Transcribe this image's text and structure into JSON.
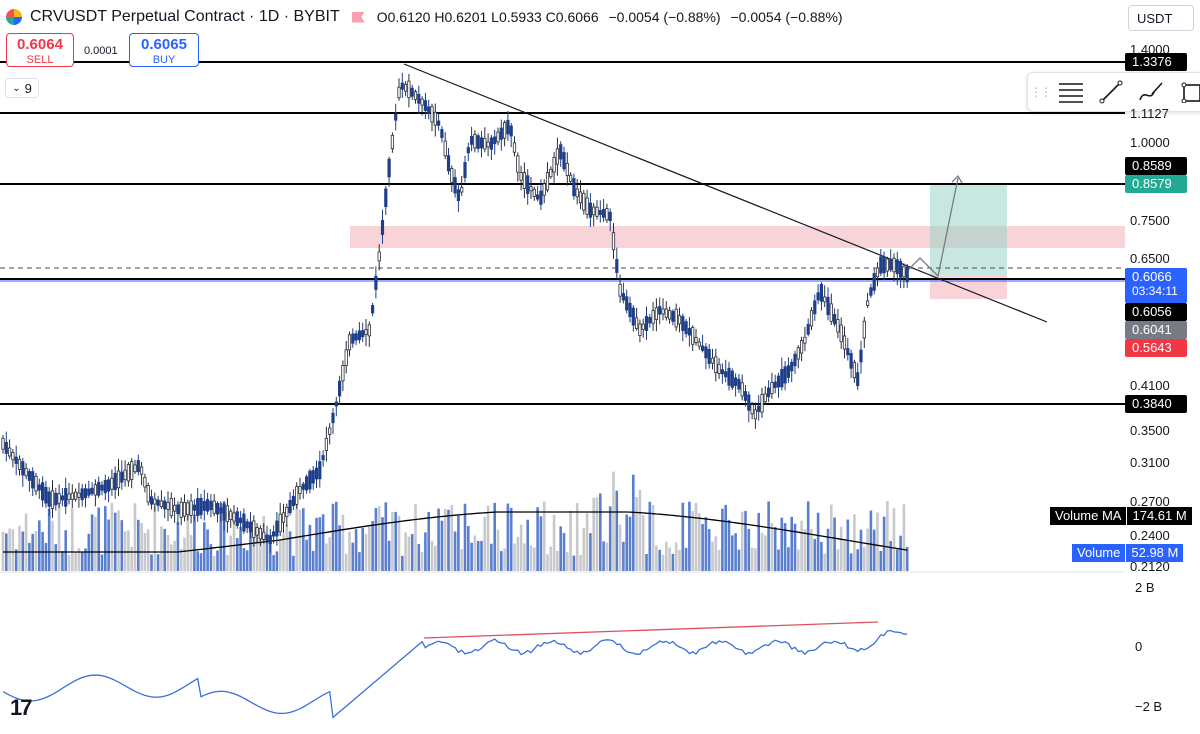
{
  "header": {
    "title": "CRVUSDT Perpetual Contract · 1D · BYBIT",
    "ohlc": {
      "open": "O0.6120",
      "high": "H0.6201",
      "low": "L0.5933",
      "close": "C0.6066",
      "change": "−0.0054 (−0.88%)",
      "change2": "−0.0054 (−0.88%)"
    }
  },
  "currency": "USDT",
  "trade": {
    "sell_price": "0.6064",
    "sell_label": "SELL",
    "spread": "0.0001",
    "buy_price": "0.6065",
    "buy_label": "BUY"
  },
  "indicators": {
    "count": "9"
  },
  "toolbar": {
    "items": [
      "drag-handle",
      "horizontal-lines-icon",
      "trend-line-icon",
      "brush-icon",
      "rectangle-icon"
    ]
  },
  "price_axis": {
    "ticks": [
      "1.4000",
      "1.1127",
      "1.0000",
      "0.7500",
      "0.6500",
      "0.4100",
      "0.3500",
      "0.3100",
      "0.2700",
      "0.2400",
      "0.2120"
    ],
    "tags": {
      "level_top": "1.3376",
      "level_0858": "0.8589",
      "target": "0.8579",
      "last_price": "0.6066",
      "countdown": "03:34:11",
      "level_0605": "0.6056",
      "avg": "0.6041",
      "stop": "0.5643",
      "level_bottom": "0.3840"
    }
  },
  "volume": {
    "ma_label": "Volume MA",
    "ma_value": "174.61 M",
    "label": "Volume",
    "value": "52.98 M"
  },
  "oscillator": {
    "ticks": [
      "2 B",
      "0",
      "−2 B"
    ]
  },
  "colors": {
    "up": "#2a2e39",
    "down": "#1e3f8a",
    "volume_down": "#5b7fcf",
    "volume_up": "#c8c9cd",
    "resistance_zone": "#f5c1c7",
    "target_zone": "#9ad3c8",
    "stop_zone": "#f5c1c7",
    "oscillator": "#3d6fd8",
    "divergence": "#e0505c"
  },
  "chart_data": {
    "type": "candlestick",
    "symbol": "CRVUSDT",
    "interval": "1D",
    "horizontal_levels": [
      1.3376,
      1.1127,
      0.8589,
      0.6056,
      0.384
    ],
    "last_price": 0.6066
  }
}
